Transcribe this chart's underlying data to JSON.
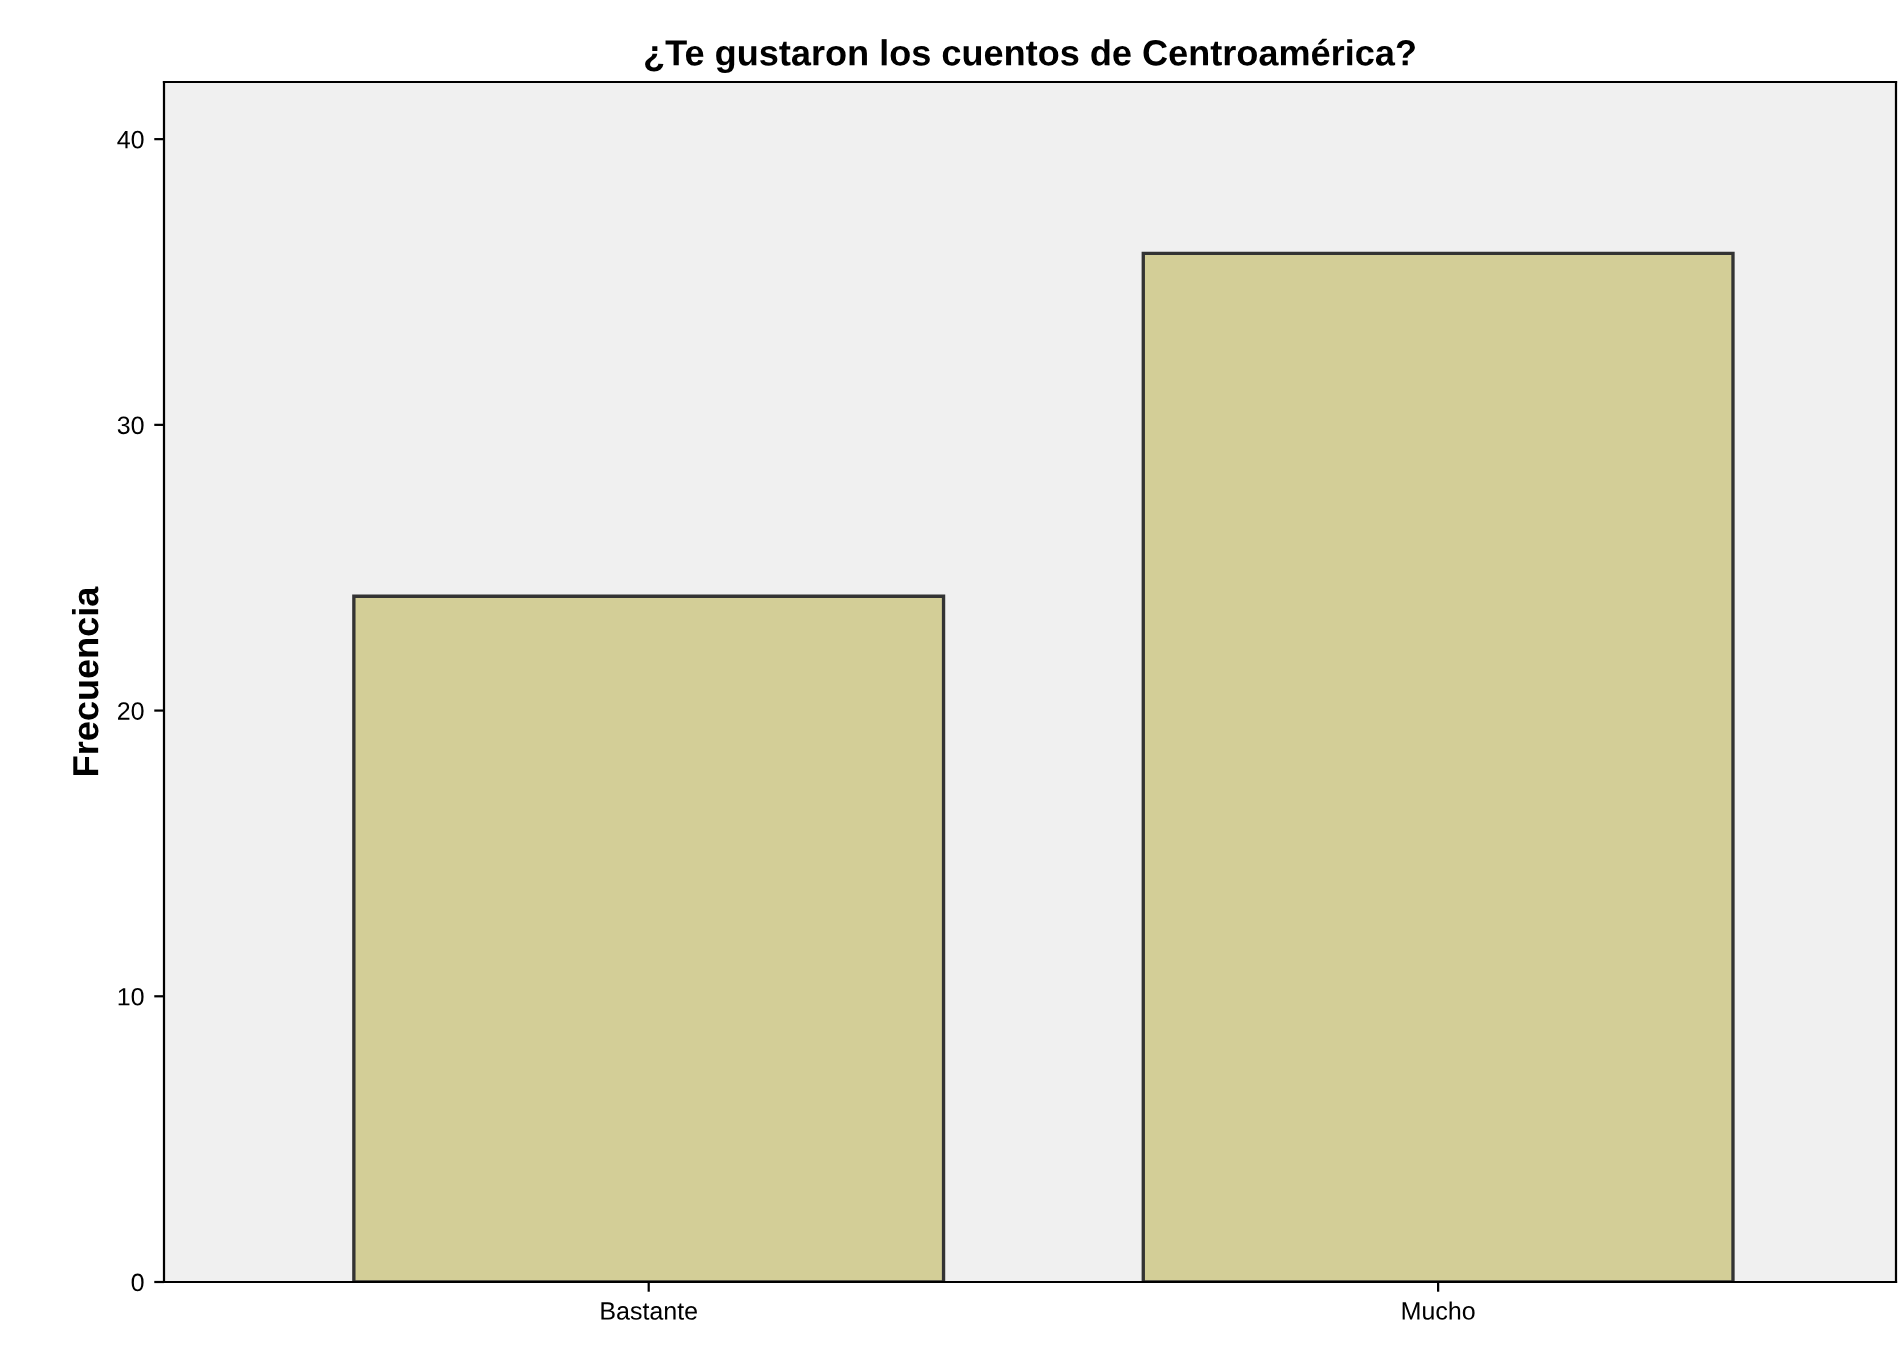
{
  "chart_data": {
    "type": "bar",
    "title": "¿Te gustaron los cuentos de Centroamérica?",
    "ylabel": "Frecuencia",
    "categories": [
      "Bastante",
      "Mucho"
    ],
    "values": [
      24,
      36
    ],
    "color": "#d3ce97",
    "ylim": [
      0,
      42
    ],
    "yticks": [
      0,
      10,
      20,
      30,
      40
    ],
    "grid": false,
    "legend": false
  }
}
